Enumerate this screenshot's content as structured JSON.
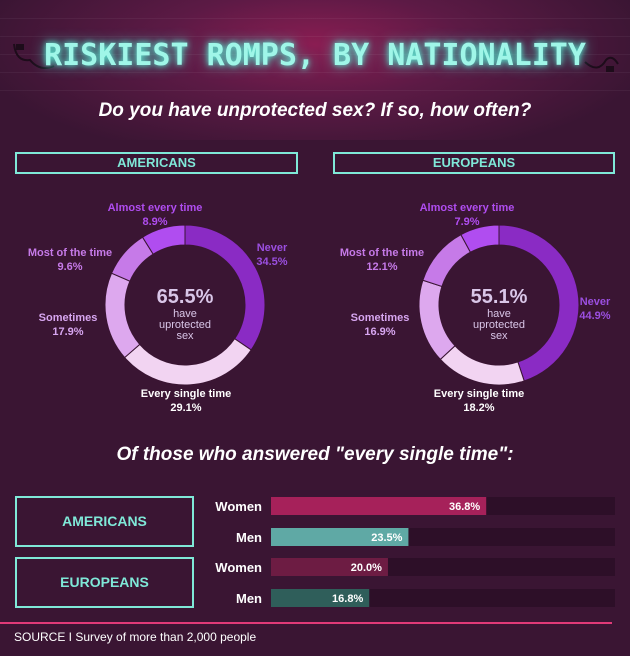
{
  "title": "RISKIEST ROMPS, BY NATIONALITY",
  "question": "Do you have unprotected sex? If so, how often?",
  "subtitle2": "Of those who answered \"every single time\":",
  "source": "SOURCE I Survey of more than 2,000 people",
  "colors": {
    "never": "#8a2bc4",
    "every_single_time": "#f2d4f2",
    "sometimes": "#dda8ee",
    "most_of_the_time": "#c67ae8",
    "almost_every_time": "#b04df0",
    "accent": "#7fe8d8",
    "women_am": "#a6215a",
    "men_am": "#5fa9a5",
    "women_eu": "#6d1c43",
    "men_eu": "#2f5e5a"
  },
  "chart_data": [
    {
      "type": "pie",
      "title": "AMERICANS",
      "center_value": "65.5%",
      "center_text": [
        "have",
        "uprotected",
        "sex"
      ],
      "slices": [
        {
          "label": "Never",
          "value": 34.5,
          "value_text": "34.5%"
        },
        {
          "label": "Every single time",
          "value": 29.1,
          "value_text": "29.1%"
        },
        {
          "label": "Sometimes",
          "value": 17.9,
          "value_text": "17.9%"
        },
        {
          "label": "Most of the time",
          "value": 9.6,
          "value_text": "9.6%"
        },
        {
          "label": "Almost every time",
          "value": 8.9,
          "value_text": "8.9%"
        }
      ]
    },
    {
      "type": "pie",
      "title": "EUROPEANS",
      "center_value": "55.1%",
      "center_text": [
        "have",
        "uprotected",
        "sex"
      ],
      "slices": [
        {
          "label": "Never",
          "value": 44.9,
          "value_text": "44.9%"
        },
        {
          "label": "Every single time",
          "value": 18.2,
          "value_text": "18.2%"
        },
        {
          "label": "Sometimes",
          "value": 16.9,
          "value_text": "16.9%"
        },
        {
          "label": "Most of the time",
          "value": 12.1,
          "value_text": "12.1%"
        },
        {
          "label": "Almost every time",
          "value": 7.9,
          "value_text": "7.9%"
        }
      ]
    },
    {
      "type": "bar",
      "orientation": "horizontal",
      "groups": [
        "AMERICANS",
        "EUROPEANS"
      ],
      "bars": [
        {
          "group": "AMERICANS",
          "label": "Women",
          "value": 36.8,
          "value_text": "36.8%"
        },
        {
          "group": "AMERICANS",
          "label": "Men",
          "value": 23.5,
          "value_text": "23.5%"
        },
        {
          "group": "EUROPEANS",
          "label": "Women",
          "value": 20.0,
          "value_text": "20.0%"
        },
        {
          "group": "EUROPEANS",
          "label": "Men",
          "value": 16.8,
          "value_text": "16.8%"
        }
      ],
      "xlim": [
        0,
        50
      ]
    }
  ]
}
